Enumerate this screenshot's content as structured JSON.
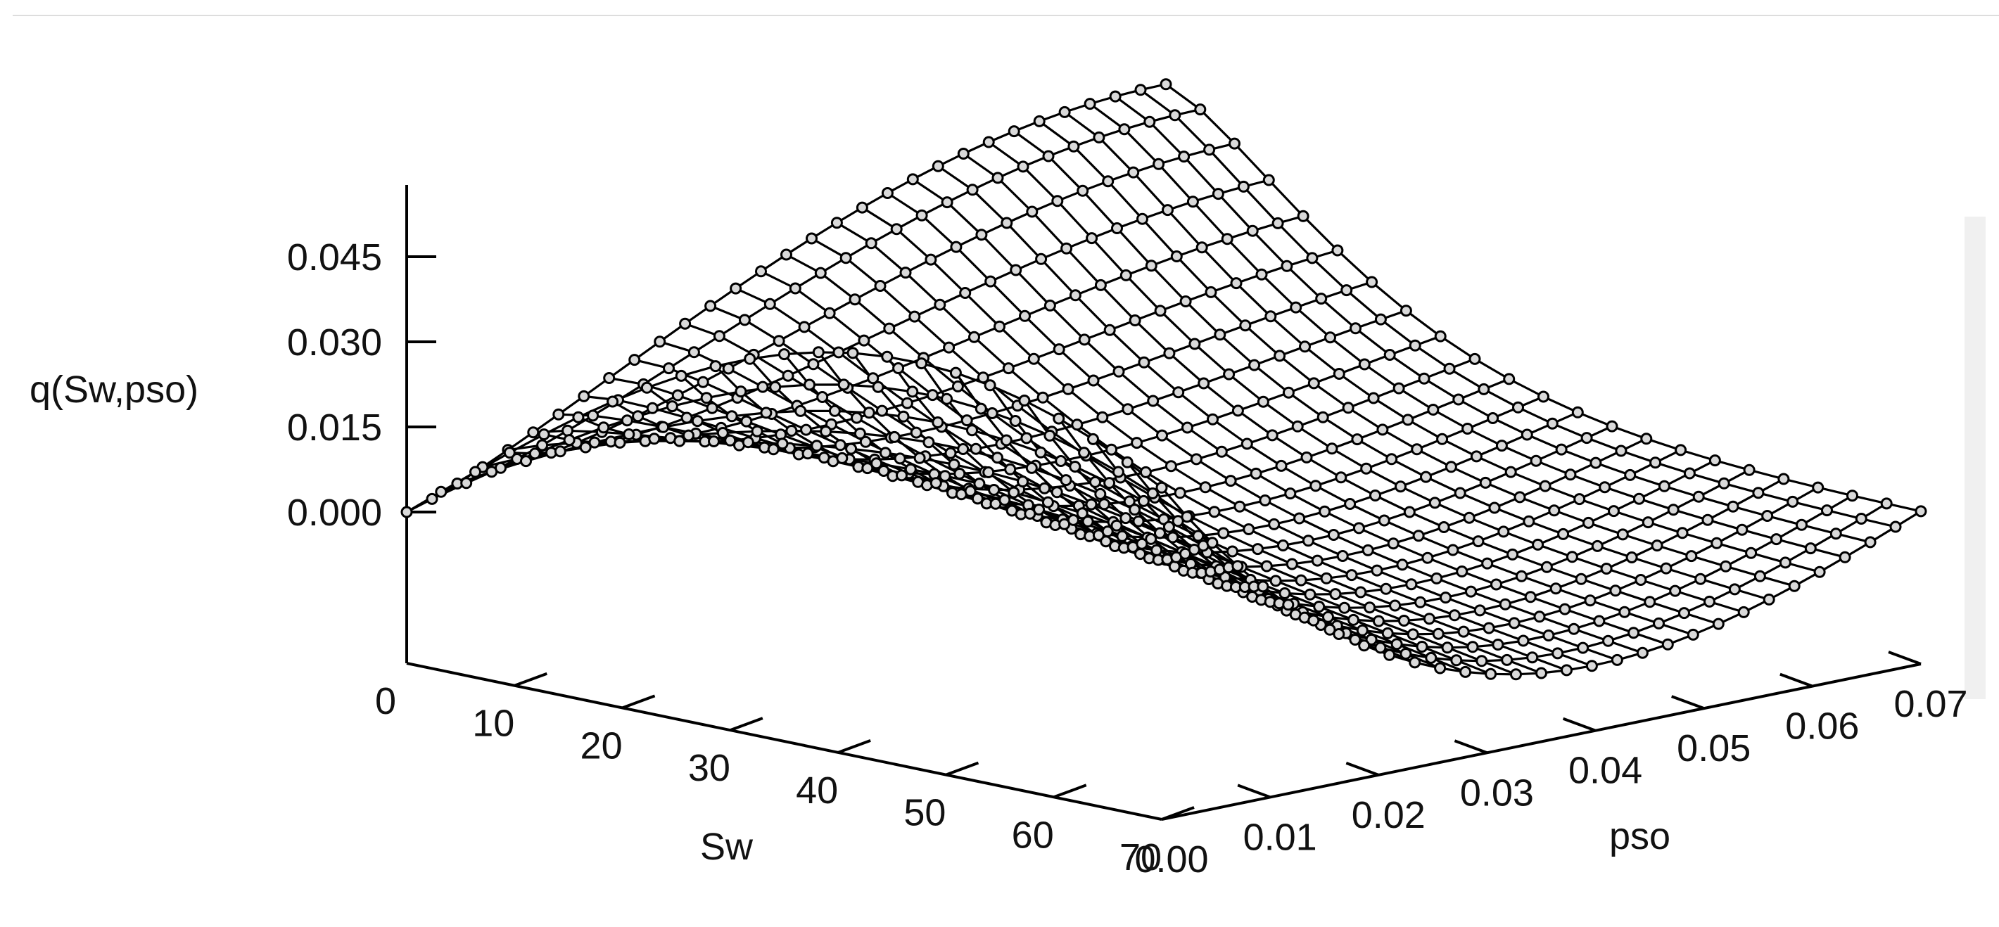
{
  "chart_data": {
    "type": "surface3d",
    "title": "",
    "xlabel": "Sw",
    "ylabel": "pso",
    "zlabel": "q(Sw,pso)",
    "x_ticks": [
      "0",
      "10",
      "20",
      "30",
      "40",
      "50",
      "60",
      "70"
    ],
    "y_ticks": [
      "0.00",
      "0.01",
      "0.02",
      "0.03",
      "0.04",
      "0.05",
      "0.06",
      "0.07"
    ],
    "z_ticks": [
      "0.000",
      "0.015",
      "0.030",
      "0.045"
    ],
    "x_range": [
      0,
      70
    ],
    "y_range": [
      0,
      0.07
    ],
    "z_range": [
      0,
      0.05
    ],
    "grid": false,
    "marker_style": "open-circle",
    "line_color": "#000000",
    "surface_samples": {
      "description_axes": [
        "Sw",
        "pso",
        "q"
      ],
      "points": [
        [
          0,
          0.0,
          0.0
        ],
        [
          0,
          0.02,
          0.02
        ],
        [
          0,
          0.04,
          0.038
        ],
        [
          0,
          0.06,
          0.047
        ],
        [
          0,
          0.07,
          0.048
        ],
        [
          35,
          0.0,
          0.0
        ],
        [
          35,
          0.035,
          0.022
        ],
        [
          35,
          0.07,
          0.006
        ],
        [
          70,
          0.0,
          0.0
        ],
        [
          70,
          0.035,
          0.001
        ],
        [
          70,
          0.07,
          0.0
        ]
      ]
    }
  }
}
